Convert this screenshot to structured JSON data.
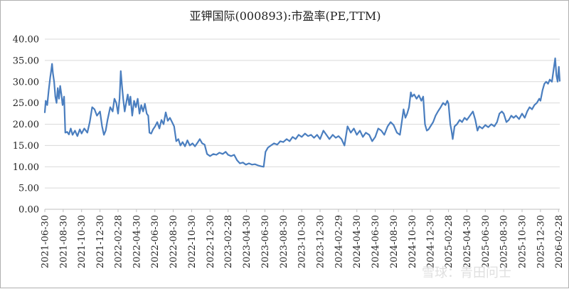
{
  "chart_data": {
    "type": "line",
    "title": "亚钾国际(000893):市盈率(PE,TTM)",
    "xlabel": "",
    "ylabel": "",
    "ylim": [
      0,
      40
    ],
    "yticks": [
      "0.00",
      "5.00",
      "10.00",
      "15.00",
      "20.00",
      "25.00",
      "30.00",
      "35.00",
      "40.00"
    ],
    "xticks": [
      "2021-06-30",
      "2021-08-30",
      "2021-10-30",
      "2021-12-30",
      "2022-02-28",
      "2022-04-30",
      "2022-06-30",
      "2022-08-30",
      "2022-10-30",
      "2022-12-30",
      "2023-02-28",
      "2023-04-30",
      "2023-06-30",
      "2023-08-30",
      "2023-10-30",
      "2023-12-30",
      "2024-02-29",
      "2024-04-30",
      "2024-06-30",
      "2024-08-30",
      "2024-10-30",
      "2024-12-30",
      "2025-02-28",
      "2025-04-30",
      "2025-06-30",
      "2025-08-30",
      "2025-10-30",
      "2025-12-30",
      "2026-02-28"
    ],
    "grid": true,
    "legend": "none",
    "series": [
      {
        "color": "#4a7ebf",
        "points": [
          [
            "2021-06-30",
            22.8
          ],
          [
            "2021-07-03",
            25.5
          ],
          [
            "2021-07-08",
            24.5
          ],
          [
            "2021-07-13",
            28.0
          ],
          [
            "2021-07-18",
            31.0
          ],
          [
            "2021-07-21",
            32.5
          ],
          [
            "2021-07-24",
            34.2
          ],
          [
            "2021-07-27",
            32.0
          ],
          [
            "2021-07-31",
            30.0
          ],
          [
            "2021-08-04",
            26.5
          ],
          [
            "2021-08-08",
            25.0
          ],
          [
            "2021-08-12",
            28.5
          ],
          [
            "2021-08-16",
            26.0
          ],
          [
            "2021-08-20",
            29.0
          ],
          [
            "2021-08-24",
            27.0
          ],
          [
            "2021-08-28",
            24.5
          ],
          [
            "2021-09-02",
            26.5
          ],
          [
            "2021-09-06",
            18.0
          ],
          [
            "2021-09-12",
            18.2
          ],
          [
            "2021-09-18",
            17.6
          ],
          [
            "2021-09-24",
            19.0
          ],
          [
            "2021-09-30",
            17.5
          ],
          [
            "2021-10-08",
            18.5
          ],
          [
            "2021-10-16",
            17.2
          ],
          [
            "2021-10-24",
            18.8
          ],
          [
            "2021-10-30",
            17.8
          ],
          [
            "2021-11-08",
            19.0
          ],
          [
            "2021-11-18",
            18.0
          ],
          [
            "2021-11-26",
            20.5
          ],
          [
            "2021-12-04",
            24.0
          ],
          [
            "2021-12-12",
            23.5
          ],
          [
            "2021-12-20",
            22.0
          ],
          [
            "2021-12-30",
            23.0
          ],
          [
            "2022-01-06",
            19.5
          ],
          [
            "2022-01-12",
            17.5
          ],
          [
            "2022-01-18",
            18.5
          ],
          [
            "2022-01-24",
            21.0
          ],
          [
            "2022-02-02",
            24.0
          ],
          [
            "2022-02-10",
            23.0
          ],
          [
            "2022-02-16",
            26.0
          ],
          [
            "2022-02-22",
            25.0
          ],
          [
            "2022-02-28",
            22.5
          ],
          [
            "2022-03-05",
            26.0
          ],
          [
            "2022-03-09",
            32.5
          ],
          [
            "2022-03-13",
            29.0
          ],
          [
            "2022-03-17",
            26.0
          ],
          [
            "2022-03-22",
            23.0
          ],
          [
            "2022-03-27",
            25.0
          ],
          [
            "2022-04-01",
            27.0
          ],
          [
            "2022-04-06",
            24.5
          ],
          [
            "2022-04-10",
            26.5
          ],
          [
            "2022-04-16",
            22.0
          ],
          [
            "2022-04-22",
            25.5
          ],
          [
            "2022-04-28",
            24.0
          ],
          [
            "2022-05-04",
            26.0
          ],
          [
            "2022-05-10",
            22.5
          ],
          [
            "2022-05-16",
            24.5
          ],
          [
            "2022-05-22",
            23.0
          ],
          [
            "2022-05-28",
            24.8
          ],
          [
            "2022-06-03",
            22.5
          ],
          [
            "2022-06-08",
            22.0
          ],
          [
            "2022-06-12",
            18.0
          ],
          [
            "2022-06-18",
            17.8
          ],
          [
            "2022-06-24",
            18.8
          ],
          [
            "2022-07-01",
            19.5
          ],
          [
            "2022-07-08",
            20.5
          ],
          [
            "2022-07-15",
            19.0
          ],
          [
            "2022-07-22",
            21.0
          ],
          [
            "2022-07-29",
            20.0
          ],
          [
            "2022-08-05",
            22.8
          ],
          [
            "2022-08-12",
            20.8
          ],
          [
            "2022-08-19",
            21.5
          ],
          [
            "2022-08-26",
            20.5
          ],
          [
            "2022-09-02",
            19.5
          ],
          [
            "2022-09-09",
            16.0
          ],
          [
            "2022-09-16",
            16.5
          ],
          [
            "2022-09-23",
            15.0
          ],
          [
            "2022-09-30",
            15.8
          ],
          [
            "2022-10-08",
            14.8
          ],
          [
            "2022-10-16",
            16.2
          ],
          [
            "2022-10-24",
            15.0
          ],
          [
            "2022-11-02",
            15.5
          ],
          [
            "2022-11-10",
            14.8
          ],
          [
            "2022-11-18",
            15.6
          ],
          [
            "2022-11-26",
            16.5
          ],
          [
            "2022-12-04",
            15.5
          ],
          [
            "2022-12-12",
            15.2
          ],
          [
            "2022-12-20",
            13.0
          ],
          [
            "2022-12-30",
            12.5
          ],
          [
            "2023-01-10",
            13.0
          ],
          [
            "2023-01-20",
            12.8
          ],
          [
            "2023-01-30",
            13.3
          ],
          [
            "2023-02-10",
            13.0
          ],
          [
            "2023-02-20",
            13.5
          ],
          [
            "2023-02-28",
            12.8
          ],
          [
            "2023-03-10",
            12.5
          ],
          [
            "2023-03-20",
            12.8
          ],
          [
            "2023-03-30",
            11.5
          ],
          [
            "2023-04-08",
            10.8
          ],
          [
            "2023-04-18",
            11.0
          ],
          [
            "2023-04-28",
            10.5
          ],
          [
            "2023-05-08",
            10.8
          ],
          [
            "2023-05-18",
            10.5
          ],
          [
            "2023-05-28",
            10.6
          ],
          [
            "2023-06-08",
            10.3
          ],
          [
            "2023-06-18",
            10.1
          ],
          [
            "2023-06-26",
            10.0
          ],
          [
            "2023-07-02",
            13.5
          ],
          [
            "2023-07-10",
            14.5
          ],
          [
            "2023-07-20",
            15.0
          ],
          [
            "2023-07-30",
            15.5
          ],
          [
            "2023-08-10",
            15.2
          ],
          [
            "2023-08-20",
            16.0
          ],
          [
            "2023-08-30",
            15.8
          ],
          [
            "2023-09-10",
            16.5
          ],
          [
            "2023-09-20",
            16.0
          ],
          [
            "2023-09-30",
            17.0
          ],
          [
            "2023-10-10",
            16.5
          ],
          [
            "2023-10-20",
            17.5
          ],
          [
            "2023-10-30",
            17.0
          ],
          [
            "2023-11-10",
            17.8
          ],
          [
            "2023-11-20",
            17.2
          ],
          [
            "2023-11-30",
            17.5
          ],
          [
            "2023-12-10",
            16.8
          ],
          [
            "2023-12-20",
            17.5
          ],
          [
            "2023-12-30",
            16.5
          ],
          [
            "2024-01-10",
            18.5
          ],
          [
            "2024-01-20",
            17.5
          ],
          [
            "2024-01-30",
            16.5
          ],
          [
            "2024-02-10",
            17.5
          ],
          [
            "2024-02-20",
            16.8
          ],
          [
            "2024-02-29",
            17.2
          ],
          [
            "2024-03-10",
            16.5
          ],
          [
            "2024-03-20",
            15.0
          ],
          [
            "2024-03-30",
            19.5
          ],
          [
            "2024-04-10",
            18.0
          ],
          [
            "2024-04-20",
            19.0
          ],
          [
            "2024-04-30",
            17.5
          ],
          [
            "2024-05-10",
            18.5
          ],
          [
            "2024-05-20",
            17.0
          ],
          [
            "2024-05-30",
            18.0
          ],
          [
            "2024-06-10",
            17.5
          ],
          [
            "2024-06-20",
            16.0
          ],
          [
            "2024-06-30",
            17.0
          ],
          [
            "2024-07-10",
            19.0
          ],
          [
            "2024-07-20",
            18.5
          ],
          [
            "2024-07-30",
            17.5
          ],
          [
            "2024-08-10",
            19.5
          ],
          [
            "2024-08-20",
            20.5
          ],
          [
            "2024-08-30",
            19.8
          ],
          [
            "2024-09-10",
            18.0
          ],
          [
            "2024-09-20",
            17.5
          ],
          [
            "2024-09-26",
            20.5
          ],
          [
            "2024-10-02",
            23.5
          ],
          [
            "2024-10-08",
            21.5
          ],
          [
            "2024-10-14",
            22.5
          ],
          [
            "2024-10-20",
            24.0
          ],
          [
            "2024-10-26",
            27.5
          ],
          [
            "2024-10-30",
            26.5
          ],
          [
            "2024-11-06",
            27.0
          ],
          [
            "2024-11-14",
            26.0
          ],
          [
            "2024-11-22",
            26.8
          ],
          [
            "2024-11-30",
            25.5
          ],
          [
            "2024-12-06",
            26.5
          ],
          [
            "2024-12-12",
            20.0
          ],
          [
            "2024-12-18",
            18.5
          ],
          [
            "2024-12-24",
            18.8
          ],
          [
            "2024-12-30",
            19.5
          ],
          [
            "2025-01-08",
            20.5
          ],
          [
            "2025-01-16",
            22.0
          ],
          [
            "2025-01-24",
            23.0
          ],
          [
            "2025-02-02",
            24.0
          ],
          [
            "2025-02-10",
            25.0
          ],
          [
            "2025-02-18",
            24.5
          ],
          [
            "2025-02-24",
            25.5
          ],
          [
            "2025-02-28",
            24.8
          ],
          [
            "2025-03-06",
            20.0
          ],
          [
            "2025-03-10",
            18.5
          ],
          [
            "2025-03-14",
            16.5
          ],
          [
            "2025-03-20",
            19.5
          ],
          [
            "2025-03-28",
            20.0
          ],
          [
            "2025-04-06",
            21.0
          ],
          [
            "2025-04-14",
            20.5
          ],
          [
            "2025-04-22",
            21.5
          ],
          [
            "2025-04-30",
            21.0
          ],
          [
            "2025-05-10",
            22.0
          ],
          [
            "2025-05-20",
            23.0
          ],
          [
            "2025-05-28",
            21.0
          ],
          [
            "2025-06-04",
            18.5
          ],
          [
            "2025-06-10",
            19.5
          ],
          [
            "2025-06-20",
            19.0
          ],
          [
            "2025-06-30",
            19.8
          ],
          [
            "2025-07-10",
            19.3
          ],
          [
            "2025-07-20",
            20.0
          ],
          [
            "2025-07-30",
            19.5
          ],
          [
            "2025-08-08",
            20.5
          ],
          [
            "2025-08-16",
            22.5
          ],
          [
            "2025-08-24",
            23.0
          ],
          [
            "2025-08-30",
            22.5
          ],
          [
            "2025-09-08",
            20.5
          ],
          [
            "2025-09-16",
            21.0
          ],
          [
            "2025-09-24",
            22.0
          ],
          [
            "2025-10-02",
            21.5
          ],
          [
            "2025-10-10",
            22.0
          ],
          [
            "2025-10-20",
            21.2
          ],
          [
            "2025-10-30",
            22.5
          ],
          [
            "2025-11-08",
            21.5
          ],
          [
            "2025-11-16",
            23.0
          ],
          [
            "2025-11-24",
            24.0
          ],
          [
            "2025-12-02",
            23.5
          ],
          [
            "2025-12-10",
            24.5
          ],
          [
            "2025-12-18",
            25.0
          ],
          [
            "2025-12-26",
            26.0
          ],
          [
            "2025-12-30",
            25.5
          ],
          [
            "2026-01-06",
            28.0
          ],
          [
            "2026-01-12",
            29.5
          ],
          [
            "2026-01-18",
            30.0
          ],
          [
            "2026-01-24",
            29.5
          ],
          [
            "2026-01-30",
            30.5
          ],
          [
            "2026-02-06",
            30.0
          ],
          [
            "2026-02-12",
            33.0
          ],
          [
            "2026-02-17",
            35.5
          ],
          [
            "2026-02-21",
            31.5
          ],
          [
            "2026-02-25",
            30.0
          ],
          [
            "2026-03-01",
            33.5
          ],
          [
            "2026-03-04",
            30.2
          ]
        ]
      }
    ]
  },
  "watermark": "雪球：青田问士"
}
